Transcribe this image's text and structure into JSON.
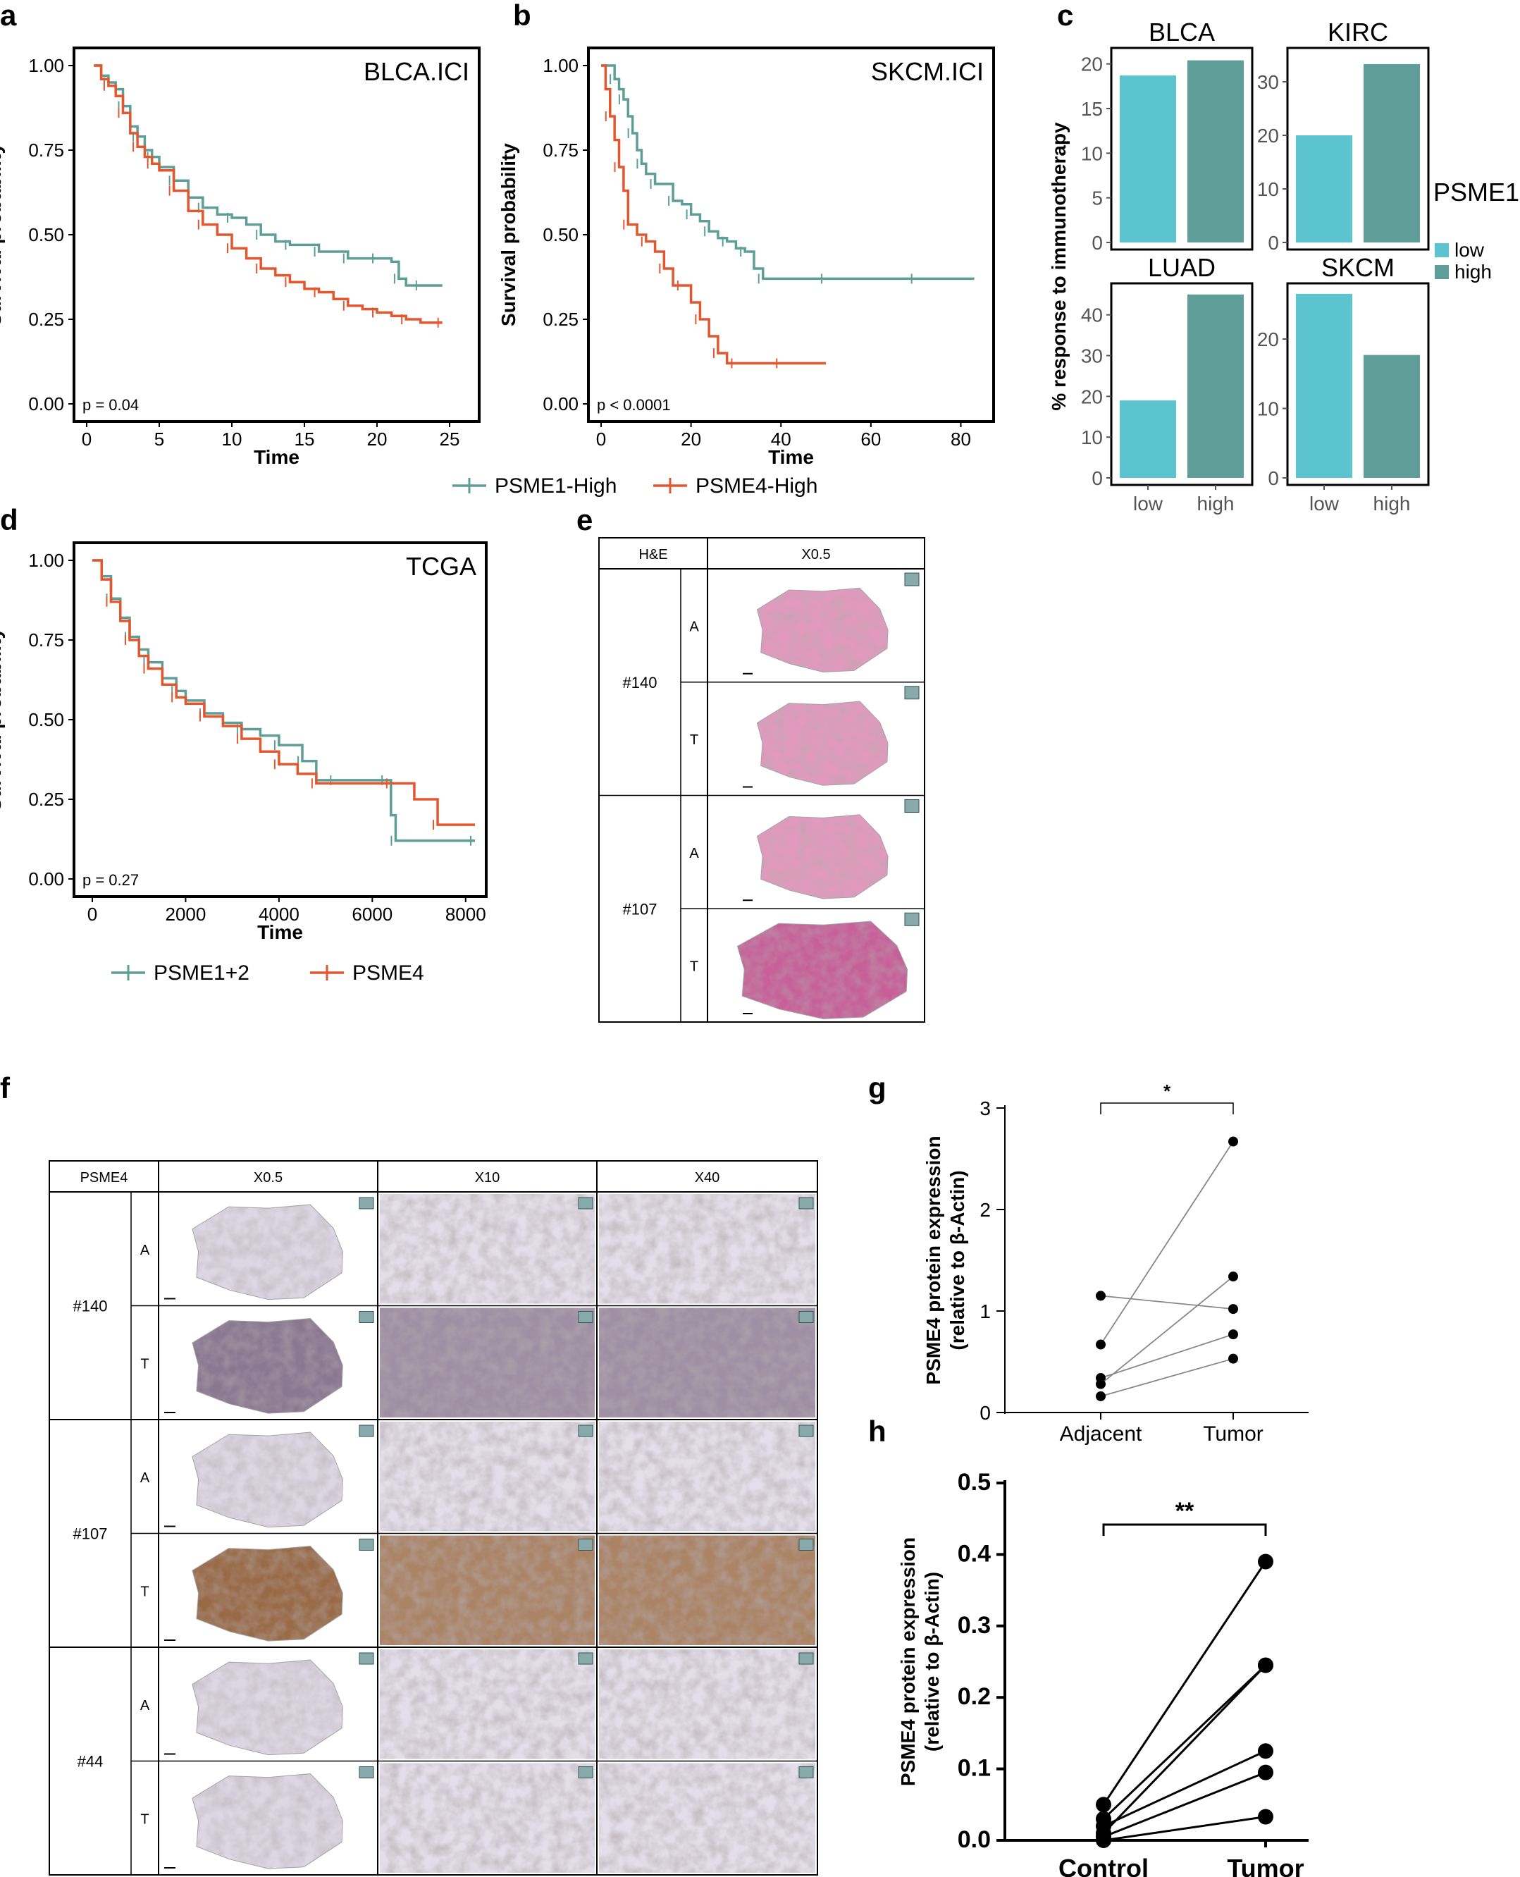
{
  "colors": {
    "teal": "#5E9E96",
    "orange": "#E4572E",
    "bar_low": "#5BC4CE",
    "bar_high": "#5F9E98",
    "he_pink": "#E08FB8",
    "he_dark": "#C24F8E",
    "ihc_light": "#D9D3E2",
    "ihc_brown": "#8F5A32",
    "ihc_purple": "#7E6A86"
  },
  "chart_data": [
    {
      "panel": "a",
      "type": "line",
      "title": "BLCA.ICI",
      "xlabel": "Time",
      "ylabel": "Survival probability",
      "xlim": [
        0,
        25
      ],
      "ylim": [
        0,
        1
      ],
      "xticks": [
        "0",
        "5",
        "10",
        "15",
        "20",
        "25"
      ],
      "yticks": [
        "0.00",
        "0.25",
        "0.50",
        "0.75",
        "1.00"
      ],
      "pvalue": "p = 0.04",
      "series": [
        {
          "name": "PSME1-High",
          "color": "teal",
          "x": [
            0.5,
            1,
            1.5,
            2,
            2.5,
            3,
            3.5,
            4,
            4.5,
            5,
            6,
            7,
            8,
            9,
            10,
            11,
            12,
            13,
            14,
            15,
            16,
            17,
            18,
            19,
            20,
            21,
            21.5,
            22,
            23,
            24.5
          ],
          "y": [
            1.0,
            0.97,
            0.95,
            0.93,
            0.88,
            0.82,
            0.79,
            0.75,
            0.73,
            0.7,
            0.66,
            0.61,
            0.58,
            0.56,
            0.55,
            0.53,
            0.5,
            0.48,
            0.47,
            0.47,
            0.45,
            0.45,
            0.43,
            0.43,
            0.43,
            0.42,
            0.37,
            0.35,
            0.35,
            0.35
          ]
        },
        {
          "name": "PSME4-High",
          "color": "orange",
          "x": [
            0.5,
            1,
            1.5,
            2,
            2.5,
            3,
            3.5,
            4,
            4.5,
            5,
            6,
            7,
            8,
            9,
            10,
            11,
            12,
            13,
            14,
            15,
            16,
            17,
            18,
            19,
            20,
            21,
            22,
            23,
            24.5
          ],
          "y": [
            1.0,
            0.96,
            0.94,
            0.91,
            0.86,
            0.8,
            0.76,
            0.73,
            0.71,
            0.69,
            0.63,
            0.57,
            0.53,
            0.5,
            0.46,
            0.43,
            0.4,
            0.38,
            0.36,
            0.34,
            0.33,
            0.31,
            0.29,
            0.28,
            0.27,
            0.26,
            0.25,
            0.24,
            0.24
          ]
        }
      ],
      "legend": [
        "PSME1-High",
        "PSME4-High"
      ]
    },
    {
      "panel": "b",
      "type": "line",
      "title": "SKCM.ICI",
      "xlabel": "Time",
      "ylabel": "Survival probability",
      "xlim": [
        0,
        84
      ],
      "ylim": [
        0,
        1
      ],
      "xticks": [
        "0",
        "20",
        "40",
        "60",
        "80"
      ],
      "yticks": [
        "0.00",
        "0.25",
        "0.50",
        "0.75",
        "1.00"
      ],
      "pvalue": "p < 0.0001",
      "series": [
        {
          "name": "PSME1-High",
          "color": "teal",
          "x": [
            0,
            2,
            3,
            4,
            5,
            6,
            7,
            8,
            9,
            10,
            12,
            14,
            16,
            18,
            20,
            22,
            24,
            26,
            28,
            30,
            32,
            34,
            36,
            40,
            50,
            60,
            70,
            83
          ],
          "y": [
            1.0,
            1.0,
            0.96,
            0.93,
            0.9,
            0.85,
            0.8,
            0.75,
            0.71,
            0.68,
            0.65,
            0.65,
            0.6,
            0.59,
            0.56,
            0.54,
            0.51,
            0.49,
            0.48,
            0.46,
            0.45,
            0.4,
            0.37,
            0.37,
            0.37,
            0.37,
            0.37,
            0.37
          ]
        },
        {
          "name": "PSME4-High",
          "color": "orange",
          "x": [
            0,
            1,
            2,
            3,
            4,
            5,
            6,
            8,
            10,
            12,
            14,
            16,
            18,
            20,
            22,
            24,
            26,
            28,
            30,
            35,
            40,
            50
          ],
          "y": [
            1.0,
            0.93,
            0.85,
            0.78,
            0.7,
            0.63,
            0.53,
            0.5,
            0.48,
            0.45,
            0.4,
            0.35,
            0.35,
            0.3,
            0.25,
            0.2,
            0.15,
            0.12,
            0.12,
            0.12,
            0.12,
            0.12
          ]
        }
      ]
    },
    {
      "panel": "c",
      "type": "bar",
      "ylabel": "% response to immunotherapy",
      "legend_title": "PSME1",
      "legend": [
        "low",
        "high"
      ],
      "categories": [
        "low",
        "high"
      ],
      "facets": [
        {
          "name": "BLCA",
          "ylim": [
            0,
            21
          ],
          "yticks": [
            "0",
            "5",
            "10",
            "15",
            "20"
          ],
          "tick_values": [
            0,
            5,
            10,
            15,
            20
          ],
          "values": [
            18.7,
            20.4
          ]
        },
        {
          "name": "KIRC",
          "ylim": [
            0,
            35
          ],
          "yticks": [
            "0",
            "10",
            "20",
            "30"
          ],
          "tick_values": [
            0,
            10,
            20,
            30
          ],
          "values": [
            20.0,
            33.3
          ]
        },
        {
          "name": "LUAD",
          "ylim": [
            0,
            46
          ],
          "yticks": [
            "0",
            "10",
            "20",
            "30",
            "40"
          ],
          "tick_values": [
            0,
            10,
            20,
            30,
            40
          ],
          "values": [
            19.0,
            45.0
          ]
        },
        {
          "name": "SKCM",
          "ylim": [
            0,
            27
          ],
          "yticks": [
            "0",
            "10",
            "20"
          ],
          "tick_values": [
            0,
            10,
            20
          ],
          "values": [
            26.5,
            17.7
          ]
        }
      ]
    },
    {
      "panel": "d",
      "type": "line",
      "title": "TCGA",
      "xlabel": "Time",
      "ylabel": "Survival probability",
      "xlim": [
        0,
        8200
      ],
      "ylim": [
        0,
        1
      ],
      "xticks": [
        "0",
        "2000",
        "4000",
        "6000",
        "8000"
      ],
      "yticks": [
        "0.00",
        "0.25",
        "0.50",
        "0.75",
        "1.00"
      ],
      "pvalue": "p = 0.27",
      "series": [
        {
          "name": "PSME1+2",
          "color": "teal",
          "x": [
            0,
            200,
            400,
            600,
            800,
            1000,
            1200,
            1500,
            1800,
            2000,
            2400,
            2800,
            3200,
            3600,
            4000,
            4200,
            4500,
            4800,
            5200,
            6000,
            6300,
            6400,
            6500,
            7000,
            8200
          ],
          "y": [
            1.0,
            0.95,
            0.88,
            0.82,
            0.76,
            0.72,
            0.68,
            0.63,
            0.59,
            0.56,
            0.52,
            0.49,
            0.47,
            0.45,
            0.42,
            0.42,
            0.37,
            0.31,
            0.31,
            0.31,
            0.31,
            0.2,
            0.12,
            0.12,
            0.12
          ]
        },
        {
          "name": "PSME4",
          "color": "orange",
          "x": [
            0,
            200,
            400,
            600,
            800,
            1000,
            1200,
            1500,
            1800,
            2000,
            2400,
            2800,
            3200,
            3600,
            4000,
            4400,
            4800,
            5600,
            6400,
            6900,
            7400,
            8200
          ],
          "y": [
            1.0,
            0.94,
            0.87,
            0.81,
            0.75,
            0.7,
            0.66,
            0.61,
            0.57,
            0.55,
            0.51,
            0.48,
            0.44,
            0.4,
            0.36,
            0.33,
            0.3,
            0.3,
            0.3,
            0.25,
            0.17,
            0.17
          ]
        }
      ],
      "legend": [
        "PSME1+2",
        "PSME4"
      ]
    },
    {
      "panel": "g",
      "type": "scatter",
      "paired": true,
      "ylabel_lines": [
        "PSME4 protein expression",
        "(relative to β-Actin)"
      ],
      "categories": [
        "Adjacent",
        "Tumor"
      ],
      "ylim": [
        0,
        3
      ],
      "yticks": [
        "0",
        "1",
        "2",
        "3"
      ],
      "tick_values": [
        0,
        1,
        2,
        3
      ],
      "significance": "*",
      "pairs": [
        [
          1.15,
          1.02
        ],
        [
          0.67,
          2.67
        ],
        [
          0.34,
          0.77
        ],
        [
          0.28,
          1.34
        ],
        [
          0.16,
          0.53
        ]
      ]
    },
    {
      "panel": "h",
      "type": "scatter",
      "paired": true,
      "ylabel_lines": [
        "PSME4 protein expression",
        "(relative to β-Actin)"
      ],
      "categories": [
        "Control",
        "Tumor"
      ],
      "ylim": [
        0,
        0.5
      ],
      "yticks": [
        "0.0",
        "0.1",
        "0.2",
        "0.3",
        "0.4",
        "0.5"
      ],
      "tick_values": [
        0,
        0.1,
        0.2,
        0.3,
        0.4,
        0.5
      ],
      "significance": "**",
      "pairs": [
        [
          0.05,
          0.39
        ],
        [
          0.03,
          0.245
        ],
        [
          0.02,
          0.125
        ],
        [
          0.01,
          0.245
        ],
        [
          0.005,
          0.095
        ],
        [
          0.0,
          0.033
        ]
      ]
    }
  ],
  "panel_e": {
    "label": "e",
    "header": [
      "H&E",
      "X0.5"
    ],
    "cases": [
      {
        "id": "#140",
        "rows": [
          {
            "tissue": "A",
            "tone": "he_pink"
          },
          {
            "tissue": "T",
            "tone": "he_pink"
          }
        ]
      },
      {
        "id": "#107",
        "rows": [
          {
            "tissue": "A",
            "tone": "he_pink"
          },
          {
            "tissue": "T",
            "tone": "he_dark"
          }
        ]
      }
    ]
  },
  "panel_f": {
    "label": "f",
    "header": [
      "PSME4",
      "X0.5",
      "X10",
      "X40"
    ],
    "cases": [
      {
        "id": "#140",
        "rows": [
          {
            "tissue": "A",
            "tone": "ihc_light"
          },
          {
            "tissue": "T",
            "tone": "ihc_purple"
          }
        ]
      },
      {
        "id": "#107",
        "rows": [
          {
            "tissue": "A",
            "tone": "ihc_light"
          },
          {
            "tissue": "T",
            "tone": "ihc_brown"
          }
        ]
      },
      {
        "id": "#44",
        "rows": [
          {
            "tissue": "A",
            "tone": "ihc_light"
          },
          {
            "tissue": "T",
            "tone": "ihc_light"
          }
        ]
      }
    ]
  }
}
